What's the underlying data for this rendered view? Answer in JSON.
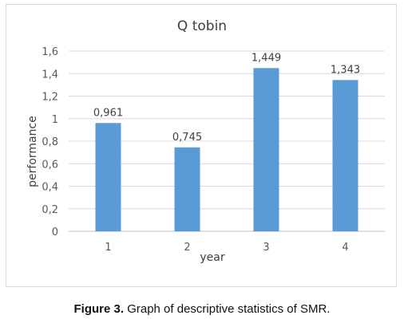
{
  "chart_data": {
    "type": "bar",
    "title": "Q tobin",
    "xlabel": "year",
    "ylabel": "performance",
    "categories": [
      "1",
      "2",
      "3",
      "4"
    ],
    "values": [
      0.961,
      0.745,
      1.449,
      1.343
    ],
    "data_labels": [
      "0,961",
      "0,745",
      "1,449",
      "1,343"
    ],
    "yticks": [
      "0",
      "0,2",
      "0,4",
      "0,6",
      "0,8",
      "1",
      "1,2",
      "1,4",
      "1,6"
    ],
    "ylim": [
      0,
      1.6
    ],
    "grid": true,
    "legend": "none",
    "bar_color": "#5b9bd5"
  },
  "caption": {
    "label": "Figure 3.",
    "text": "Graph of descriptive statistics of SMR."
  }
}
